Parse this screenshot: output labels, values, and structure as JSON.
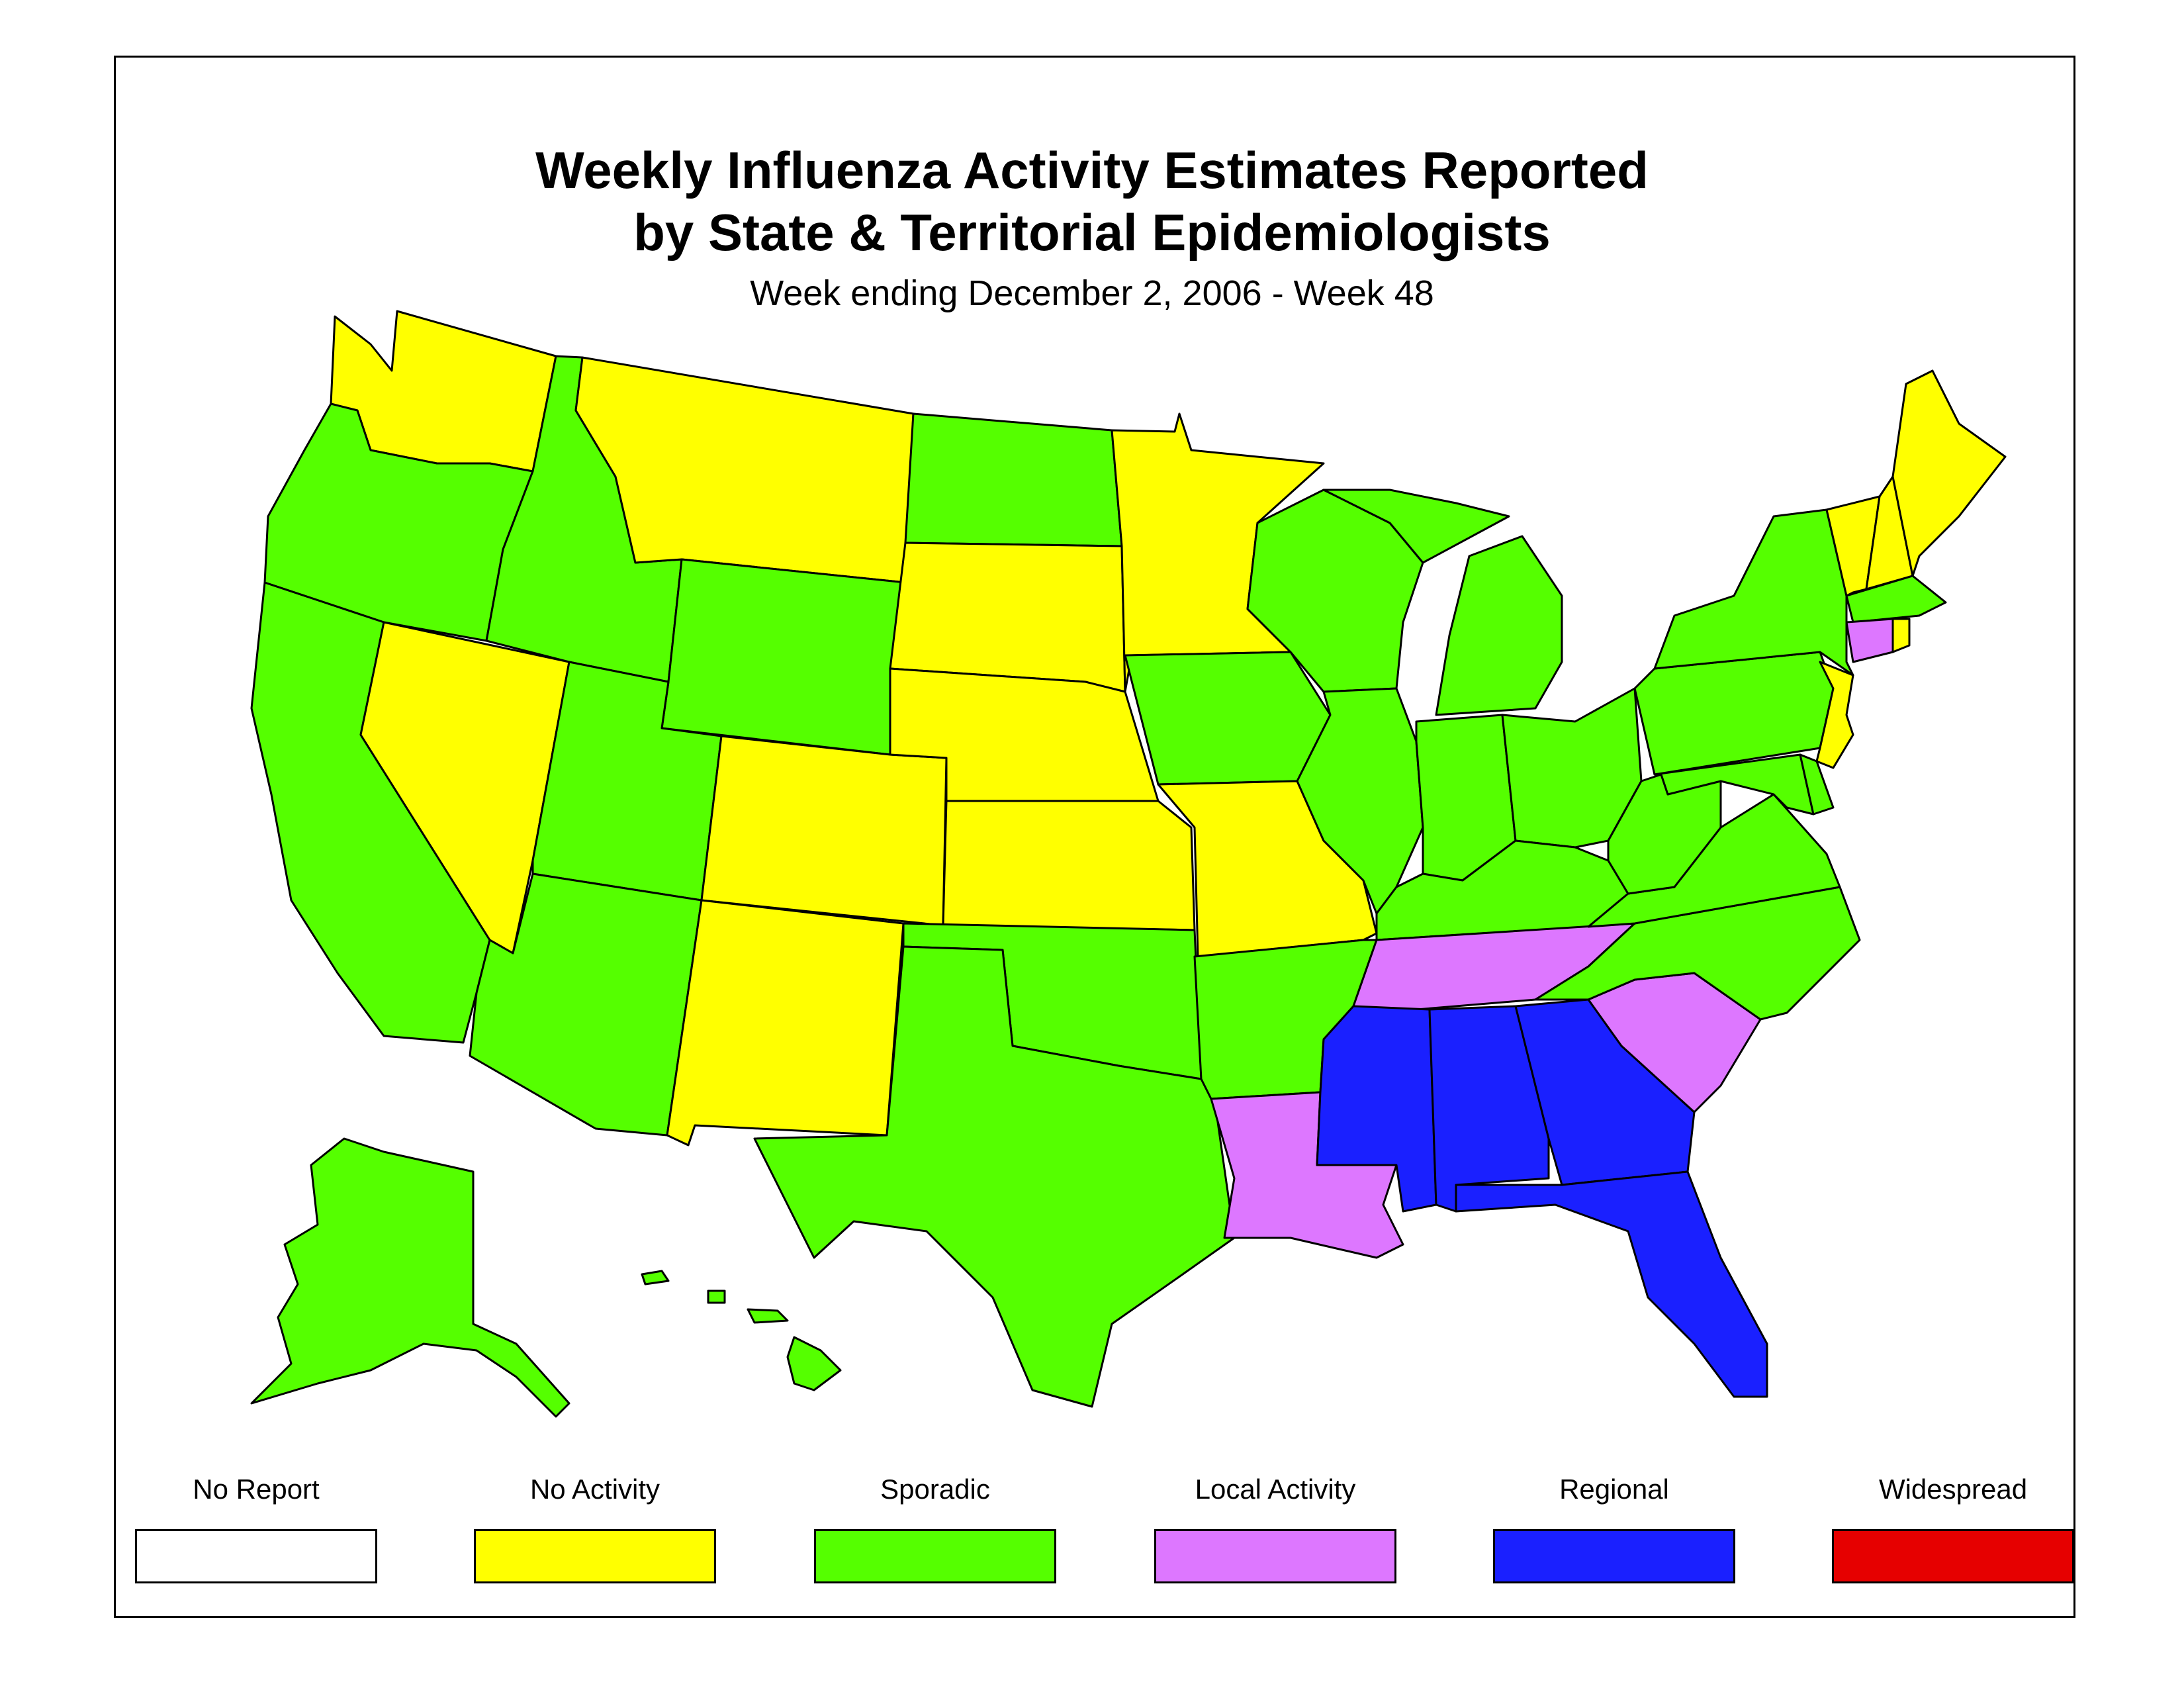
{
  "title_line1": "Weekly Influenza Activity Estimates Reported",
  "title_line2": "by State & Territorial Epidemiologists",
  "subtitle": "Week ending December 2, 2006 - Week 48",
  "colors": {
    "no_report": "#ffffff",
    "no_activity": "#ffff00",
    "sporadic": "#55ff00",
    "local": "#dd77ff",
    "regional": "#1a20ff",
    "widespread": "#e60000"
  },
  "legend": [
    {
      "label": "No Report",
      "color": "#ffffff"
    },
    {
      "label": "No Activity",
      "color": "#ffff00"
    },
    {
      "label": "Sporadic",
      "color": "#55ff00"
    },
    {
      "label": "Local Activity",
      "color": "#dd77ff"
    },
    {
      "label": "Regional",
      "color": "#1a20ff"
    },
    {
      "label": "Widespread",
      "color": "#e60000"
    }
  ],
  "states": {
    "WA": "No Activity",
    "OR": "Sporadic",
    "CA": "Sporadic",
    "NV": "No Activity",
    "ID": "Sporadic",
    "MT": "No Activity",
    "WY": "Sporadic",
    "UT": "Sporadic",
    "AZ": "Sporadic",
    "CO": "No Activity",
    "NM": "No Activity",
    "ND": "Sporadic",
    "SD": "No Activity",
    "NE": "No Activity",
    "KS": "No Activity",
    "OK": "Sporadic",
    "TX": "Sporadic",
    "MN": "No Activity",
    "IA": "Sporadic",
    "MO": "No Activity",
    "AR": "Sporadic",
    "LA": "Local Activity",
    "WI": "Sporadic",
    "IL": "Sporadic",
    "MI": "Sporadic",
    "IN": "Sporadic",
    "OH": "Sporadic",
    "KY": "Sporadic",
    "TN": "Local Activity",
    "MS": "Regional",
    "AL": "Regional",
    "GA": "Regional",
    "FL": "Regional",
    "SC": "Local Activity",
    "NC": "Sporadic",
    "VA": "Sporadic",
    "WV": "Sporadic",
    "PA": "Sporadic",
    "NY": "Sporadic",
    "NJ": "No Activity",
    "DE": "Sporadic",
    "MD": "Sporadic",
    "CT": "Local Activity",
    "RI": "No Activity",
    "MA": "Sporadic",
    "VT": "No Activity",
    "NH": "No Activity",
    "ME": "No Activity",
    "AK": "Sporadic",
    "HI": "Sporadic"
  }
}
